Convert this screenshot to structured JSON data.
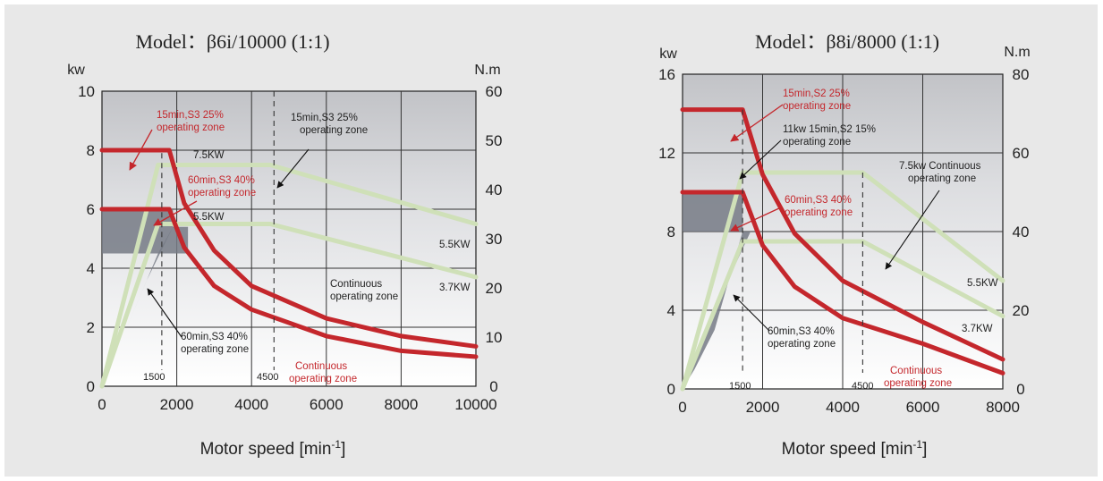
{
  "charts": [
    {
      "title": "Model：β6i/10000 (1:1)",
      "left_unit": "kw",
      "right_unit": "N.m",
      "xlabel_main": "Motor speed [min",
      "xlabel_sup": "-1",
      "xlabel_end": "]",
      "x_ticks": [
        "0",
        "2000",
        "4000",
        "6000",
        "8000",
        "10000"
      ],
      "y_left_ticks": [
        "0",
        "2",
        "4",
        "6",
        "8",
        "10"
      ],
      "y_right_ticks": [
        "0",
        "10",
        "20",
        "30",
        "40",
        "50",
        "60"
      ],
      "speed_marks": [
        "1500",
        "4500"
      ],
      "level_labels": [
        "7.5KW",
        "5.5KW",
        "5.5KW",
        "3.7KW"
      ],
      "annotations": {
        "s3_25_red": [
          "15min,S3 25%",
          "operating zone"
        ],
        "s3_25_black": [
          "15min,S3 25%",
          "operating zone"
        ],
        "s3_40_red": [
          "60min,S3 40%",
          "operating zone"
        ],
        "s3_40_black": [
          "60min,S3 40%",
          "operating zone"
        ],
        "continuous_black": [
          "Continuous",
          "operating zone"
        ],
        "continuous_red": [
          "Continuous",
          "operating zone"
        ]
      }
    },
    {
      "title": "Model：β8i/8000 (1:1)",
      "left_unit": "kw",
      "right_unit": "N.m",
      "xlabel_main": "Motor speed [min",
      "xlabel_sup": "-1",
      "xlabel_end": "]",
      "x_ticks": [
        "0",
        "2000",
        "4000",
        "6000",
        "8000"
      ],
      "y_left_ticks": [
        "0",
        "4",
        "8",
        "12",
        "16"
      ],
      "y_right_ticks": [
        "0",
        "20",
        "40",
        "60",
        "80"
      ],
      "speed_marks": [
        "1500",
        "4500"
      ],
      "level_labels": [
        "5.5KW",
        "3.7KW"
      ],
      "annotations": {
        "s2_25_red": [
          "15min,S2 25%",
          "operating zone"
        ],
        "s2_15_black": [
          "11kw 15min,S2 15%",
          "operating zone"
        ],
        "cont_75_black": [
          "7.5kw Continuous",
          "operating zone"
        ],
        "s3_40_red": [
          "60min,S3 40%",
          "operating zone"
        ],
        "s3_40_black": [
          "60min,S3 40%",
          "operating zone"
        ],
        "continuous_red": [
          "Continuous",
          "operating zone"
        ]
      }
    }
  ],
  "colors": {
    "torque_curve": "#c4272c",
    "power_line": "#cfe0b8",
    "zone_shade": "#767a85",
    "grid": "#333333"
  },
  "chart_data": [
    {
      "type": "line",
      "title": "Model：β6i/10000 (1:1)",
      "xlabel": "Motor speed [min-1]",
      "ylabel": "kw",
      "ylabel_right": "N.m",
      "xlim": [
        0,
        10000
      ],
      "ylim": [
        0,
        10
      ],
      "ylim_right": [
        0,
        60
      ],
      "series": [
        {
          "name": "15min,S3 25% operating zone",
          "x": [
            0,
            1800,
            2200,
            3000,
            4000,
            6000,
            8000,
            10000
          ],
          "y": [
            8.0,
            8.0,
            6.2,
            4.6,
            3.4,
            2.3,
            1.7,
            1.35
          ]
        },
        {
          "name": "Continuous operating zone",
          "x": [
            0,
            1800,
            2200,
            3000,
            4000,
            6000,
            8000,
            10000
          ],
          "y": [
            6.0,
            6.0,
            4.7,
            3.4,
            2.6,
            1.7,
            1.2,
            1.0
          ]
        },
        {
          "name": "",
          "x": [
            0,
            1500,
            4500,
            10000
          ],
          "y": [
            0,
            7.5,
            7.5,
            5.5
          ]
        },
        {
          "name": "",
          "x": [
            0,
            1500,
            4500,
            10000
          ],
          "y": [
            0,
            5.5,
            5.5,
            3.7
          ]
        }
      ],
      "grid": true
    },
    {
      "type": "line",
      "title": "Model：β8i/8000 (1:1)",
      "xlabel": "Motor speed [min-1]",
      "ylabel": "kw",
      "ylabel_right": "N.m",
      "xlim": [
        0,
        8000
      ],
      "ylim": [
        0,
        16
      ],
      "ylim_right": [
        0,
        80
      ],
      "series": [
        {
          "name": "15min,S2 25% operating zone",
          "x": [
            0,
            1500,
            2000,
            2800,
            4000,
            6000,
            8000
          ],
          "y": [
            14.2,
            14.2,
            10.9,
            7.9,
            5.5,
            3.4,
            1.5
          ]
        },
        {
          "name": "Continuous operating zone",
          "x": [
            0,
            1500,
            2000,
            2800,
            4000,
            6000,
            8000
          ],
          "y": [
            10.0,
            10.0,
            7.3,
            5.2,
            3.6,
            2.3,
            0.8
          ]
        },
        {
          "name": "",
          "x": [
            0,
            1500,
            4500,
            8000
          ],
          "y": [
            0,
            11,
            11,
            5.5
          ]
        },
        {
          "name": "",
          "x": [
            0,
            1500,
            4500,
            8000
          ],
          "y": [
            0,
            7.5,
            7.5,
            3.7
          ]
        }
      ],
      "grid": true
    }
  ]
}
